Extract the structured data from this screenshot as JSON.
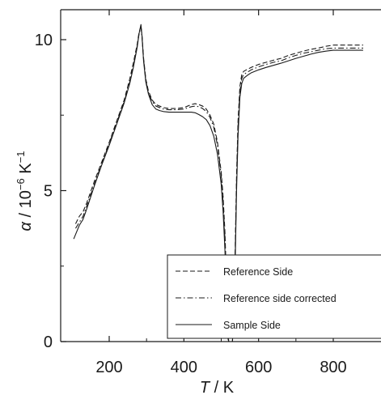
{
  "chart_data": {
    "type": "line",
    "xlabel": "T / K",
    "xlabel_parts": {
      "var": "T",
      "unit": "K"
    },
    "ylabel": "α / 10⁻⁶ K⁻¹",
    "ylabel_parts": {
      "var": "α",
      "unit_base": "10",
      "unit_exp": "−6",
      "unit_k": "K",
      "unit_kexp": "−1"
    },
    "xlim": [
      80,
      885
    ],
    "ylim": [
      0,
      11
    ],
    "xticks": [
      200,
      400,
      600,
      800
    ],
    "yticks": [
      0,
      5,
      10
    ],
    "xtick_labels": [
      "200",
      "400",
      "600",
      "800"
    ],
    "ytick_labels": [
      "0",
      "5",
      "10"
    ],
    "legend_position": "lower-right",
    "series": [
      {
        "name": "Reference Side",
        "style": "dashed",
        "x": [
          110,
          120,
          130,
          140,
          160,
          180,
          200,
          220,
          240,
          255,
          265,
          275,
          280,
          285,
          288,
          292,
          298,
          305,
          315,
          325,
          335,
          345,
          360,
          380,
          400,
          410,
          420,
          430,
          440,
          450,
          460,
          470,
          480,
          490,
          500,
          505,
          510,
          514,
          518,
          520,
          522,
          524,
          530,
          535,
          538,
          541,
          545,
          550,
          555,
          560,
          570,
          580,
          600,
          620,
          640,
          660,
          680,
          700,
          720,
          740,
          760,
          780,
          800,
          820,
          840,
          860,
          880
        ],
        "y": [
          3.9,
          4.15,
          4.3,
          4.6,
          5.3,
          5.95,
          6.6,
          7.3,
          8.0,
          8.7,
          9.25,
          9.85,
          10.25,
          10.45,
          10.1,
          9.4,
          8.7,
          8.3,
          8.0,
          7.85,
          7.8,
          7.75,
          7.72,
          7.72,
          7.75,
          7.8,
          7.85,
          7.88,
          7.85,
          7.8,
          7.7,
          7.5,
          7.2,
          6.6,
          5.6,
          4.8,
          3.6,
          2.0,
          0.3,
          0.0,
          0.0,
          0.0,
          0.0,
          1.5,
          3.5,
          5.5,
          7.3,
          8.45,
          8.85,
          8.95,
          9.02,
          9.08,
          9.18,
          9.25,
          9.32,
          9.38,
          9.48,
          9.55,
          9.62,
          9.68,
          9.72,
          9.78,
          9.82,
          9.82,
          9.82,
          9.82,
          9.82
        ]
      },
      {
        "name": "Reference side corrected",
        "style": "dashdot",
        "x": [
          110,
          120,
          130,
          140,
          160,
          180,
          200,
          220,
          240,
          255,
          265,
          275,
          280,
          285,
          288,
          292,
          298,
          305,
          315,
          325,
          335,
          345,
          360,
          380,
          400,
          410,
          420,
          430,
          440,
          450,
          460,
          470,
          480,
          490,
          500,
          505,
          510,
          514,
          518,
          520,
          522,
          524,
          530,
          535,
          538,
          541,
          545,
          550,
          555,
          560,
          570,
          580,
          600,
          620,
          640,
          660,
          680,
          700,
          720,
          740,
          760,
          780,
          800,
          820,
          840,
          860,
          880
        ],
        "y": [
          3.75,
          3.95,
          4.15,
          4.5,
          5.2,
          5.9,
          6.55,
          7.25,
          7.95,
          8.6,
          9.15,
          9.8,
          10.2,
          10.42,
          10.05,
          9.35,
          8.65,
          8.25,
          7.95,
          7.8,
          7.75,
          7.7,
          7.68,
          7.68,
          7.7,
          7.74,
          7.78,
          7.8,
          7.78,
          7.72,
          7.62,
          7.42,
          7.1,
          6.5,
          5.5,
          4.6,
          3.4,
          1.8,
          0.2,
          0.0,
          0.0,
          0.0,
          0.0,
          1.4,
          3.3,
          5.3,
          7.1,
          8.3,
          8.72,
          8.85,
          8.92,
          9.0,
          9.1,
          9.18,
          9.25,
          9.3,
          9.4,
          9.48,
          9.55,
          9.6,
          9.65,
          9.7,
          9.72,
          9.72,
          9.72,
          9.72,
          9.72
        ]
      },
      {
        "name": "Sample Side",
        "style": "solid",
        "x": [
          105,
          110,
          120,
          130,
          140,
          160,
          180,
          200,
          220,
          240,
          255,
          265,
          275,
          280,
          285,
          288,
          292,
          298,
          305,
          315,
          325,
          335,
          345,
          360,
          380,
          400,
          410,
          420,
          430,
          440,
          450,
          460,
          470,
          480,
          490,
          500,
          505,
          510,
          514,
          518,
          520,
          522,
          524,
          530,
          535,
          538,
          541,
          545,
          550,
          555,
          560,
          570,
          580,
          600,
          620,
          640,
          660,
          680,
          700,
          720,
          740,
          760,
          780,
          800,
          820,
          840,
          860,
          880
        ],
        "y": [
          3.4,
          3.55,
          3.85,
          4.05,
          4.4,
          5.15,
          5.85,
          6.5,
          7.2,
          7.9,
          8.55,
          9.1,
          9.75,
          10.2,
          10.5,
          10.1,
          9.3,
          8.6,
          8.2,
          7.85,
          7.7,
          7.65,
          7.62,
          7.6,
          7.6,
          7.6,
          7.6,
          7.6,
          7.58,
          7.52,
          7.45,
          7.35,
          7.15,
          6.8,
          6.2,
          5.2,
          4.3,
          3.0,
          1.5,
          0.1,
          0.0,
          0.0,
          0.0,
          0.0,
          1.2,
          3.0,
          5.0,
          6.8,
          8.1,
          8.55,
          8.72,
          8.82,
          8.9,
          9.0,
          9.08,
          9.15,
          9.22,
          9.3,
          9.38,
          9.45,
          9.52,
          9.58,
          9.62,
          9.65,
          9.65,
          9.65,
          9.65,
          9.65
        ]
      }
    ]
  }
}
